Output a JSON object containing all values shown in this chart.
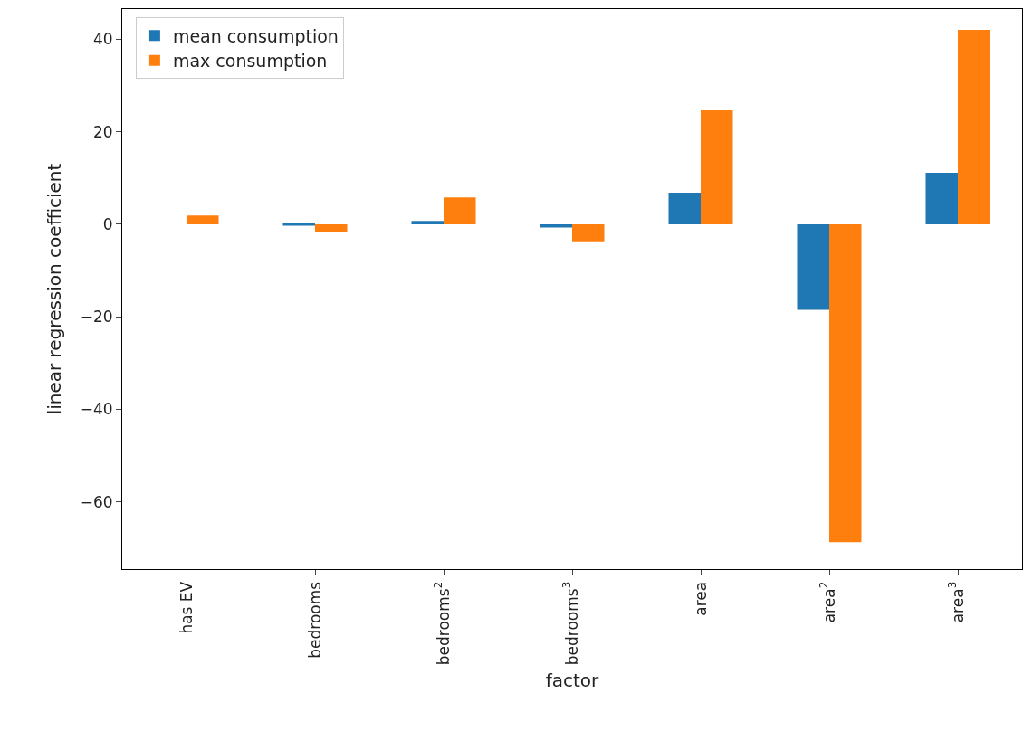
{
  "chart_data": {
    "type": "bar",
    "xlabel": "factor",
    "ylabel": "linear regression coefficient",
    "categories": [
      "has EV",
      "bedrooms",
      "bedrooms$^{2}$",
      "bedrooms$^{3}$",
      "area",
      "area$^{2}$",
      "area$^{3}$"
    ],
    "series": [
      {
        "name": "mean consumption",
        "color": "#1f77b4",
        "values": [
          0.0,
          -0.3,
          0.7,
          -0.7,
          6.8,
          -18.5,
          11.1
        ]
      },
      {
        "name": "max consumption",
        "color": "#ff7f0e",
        "values": [
          1.9,
          -1.6,
          5.8,
          -3.7,
          24.6,
          -68.7,
          42.0
        ]
      }
    ],
    "ylim": [
      -74.5,
      46.5
    ],
    "yticks": [
      {
        "value": -60,
        "label": "−60"
      },
      {
        "value": -40,
        "label": "−40"
      },
      {
        "value": -20,
        "label": "−20"
      },
      0,
      20,
      40
    ],
    "legend": "top left"
  }
}
